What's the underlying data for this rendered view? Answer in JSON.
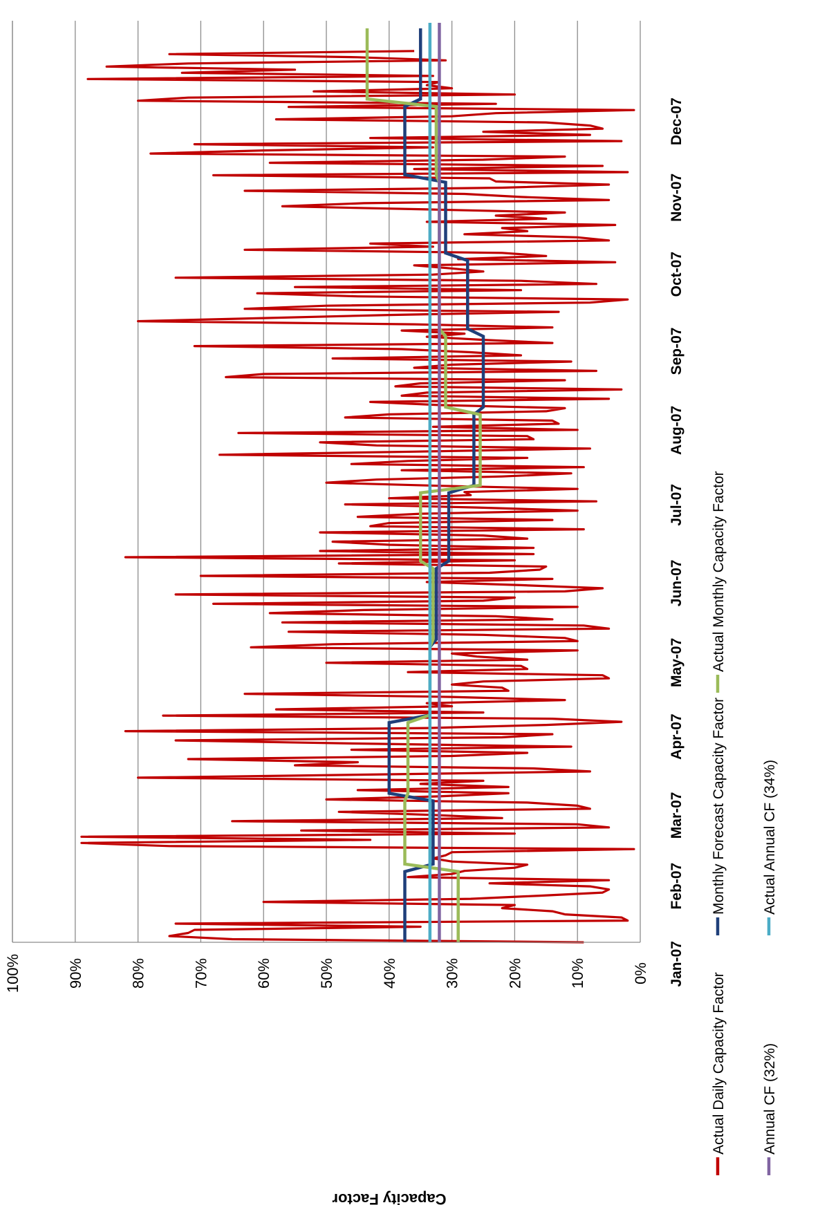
{
  "chart_data": {
    "type": "line",
    "title": "",
    "xlabel": "",
    "ylabel": "Capacity Factor",
    "ylim": [
      0,
      100
    ],
    "y_unit": "%",
    "y_tick_labels": [
      "0%",
      "10%",
      "20%",
      "30%",
      "40%",
      "50%",
      "60%",
      "70%",
      "80%",
      "90%",
      "100%"
    ],
    "x_tick_labels": [
      "Jan-07",
      "Feb-07",
      "Mar-07",
      "Apr-07",
      "May-07",
      "Jun-07",
      "Jul-07",
      "Aug-07",
      "Sep-07",
      "Oct-07",
      "Nov-07",
      "Dec-07"
    ],
    "orientation": "rotated 90° counter-clockwise",
    "grid": true,
    "legend_position": "bottom",
    "series": [
      {
        "name": "Actual Daily Capacity Factor",
        "color": "#c00000",
        "kind": "daily",
        "x_start": "2007-01-01",
        "x_end": "2007-12-20",
        "values": [
          9,
          65,
          75,
          72,
          71,
          35,
          74,
          2,
          3,
          12,
          14,
          22,
          20,
          60,
          27,
          16,
          6,
          5,
          8,
          24,
          5,
          37,
          30,
          28,
          20,
          18,
          30,
          33,
          31,
          30,
          1,
          75,
          89,
          43,
          89,
          20,
          54,
          5,
          10,
          65,
          22,
          33,
          48,
          8,
          10,
          18,
          50,
          32,
          21,
          45,
          21,
          35,
          25,
          80,
          43,
          8,
          17,
          55,
          45,
          72,
          30,
          18,
          46,
          11,
          45,
          74,
          22,
          14,
          82,
          34,
          15,
          3,
          14,
          76,
          25,
          58,
          30,
          34,
          12,
          30,
          63,
          21,
          22,
          30,
          25,
          5,
          6,
          37,
          18,
          19,
          50,
          18,
          26,
          30,
          10,
          62,
          49,
          10,
          12,
          25,
          56,
          5,
          9,
          57,
          14,
          23,
          59,
          44,
          10,
          68,
          25,
          20,
          74,
          12,
          6,
          19,
          34,
          14,
          70,
          24,
          16,
          15,
          48,
          20,
          82,
          17,
          51,
          17,
          40,
          49,
          18,
          25,
          51,
          9,
          43,
          40,
          14,
          45,
          35,
          10,
          26,
          47,
          7,
          40,
          27,
          28,
          10,
          32,
          50,
          42,
          22,
          11,
          38,
          9,
          46,
          37,
          18,
          67,
          36,
          8,
          42,
          51,
          17,
          18,
          64,
          10,
          33,
          13,
          14,
          47,
          40,
          15,
          12,
          32,
          43,
          5,
          38,
          34,
          3,
          39,
          35,
          12,
          66,
          60,
          7,
          36,
          30,
          11,
          49,
          19,
          27,
          38,
          71,
          14,
          25,
          34,
          28,
          38,
          14,
          36,
          80,
          60,
          40,
          13,
          63,
          50,
          8,
          2,
          45,
          61,
          19,
          55,
          7,
          19,
          74,
          33,
          25,
          30,
          36,
          4,
          29,
          15,
          22,
          63,
          33,
          43,
          5,
          10,
          28,
          18,
          22,
          4,
          34,
          15,
          23,
          12,
          34,
          57,
          44,
          5,
          19,
          28,
          63,
          22,
          5,
          23,
          24,
          68,
          2,
          36,
          6,
          59,
          25,
          12,
          78,
          60,
          33,
          71,
          3,
          43,
          8,
          25,
          6,
          8,
          15,
          58,
          30,
          23,
          1,
          56,
          23,
          80,
          72,
          20,
          52,
          30,
          34,
          32,
          88,
          33,
          73,
          55,
          85,
          72,
          31,
          45,
          75,
          36
        ]
      },
      {
        "name": "Monthly Forecast Capacity Factor",
        "color": "#1f3f7a",
        "kind": "monthly",
        "values": [
          37.5,
          33.0,
          40.0,
          33.5,
          32.5,
          30.5,
          26.5,
          25.0,
          27.5,
          31.0,
          37.5,
          35.0
        ]
      },
      {
        "name": "Actual Monthly Capacity Factor",
        "color": "#9bbb59",
        "kind": "monthly",
        "values": [
          29.0,
          37.5,
          37.0,
          33.5,
          33.0,
          35.0,
          25.5,
          31.0,
          32.0,
          32.0,
          32.5,
          43.5
        ]
      },
      {
        "name": "Annual CF (32%)",
        "color": "#8064a2",
        "kind": "constant",
        "value": 32
      },
      {
        "name": "Actual Annual CF (34%)",
        "color": "#4bacc6",
        "kind": "constant",
        "value": 33.5
      }
    ]
  }
}
